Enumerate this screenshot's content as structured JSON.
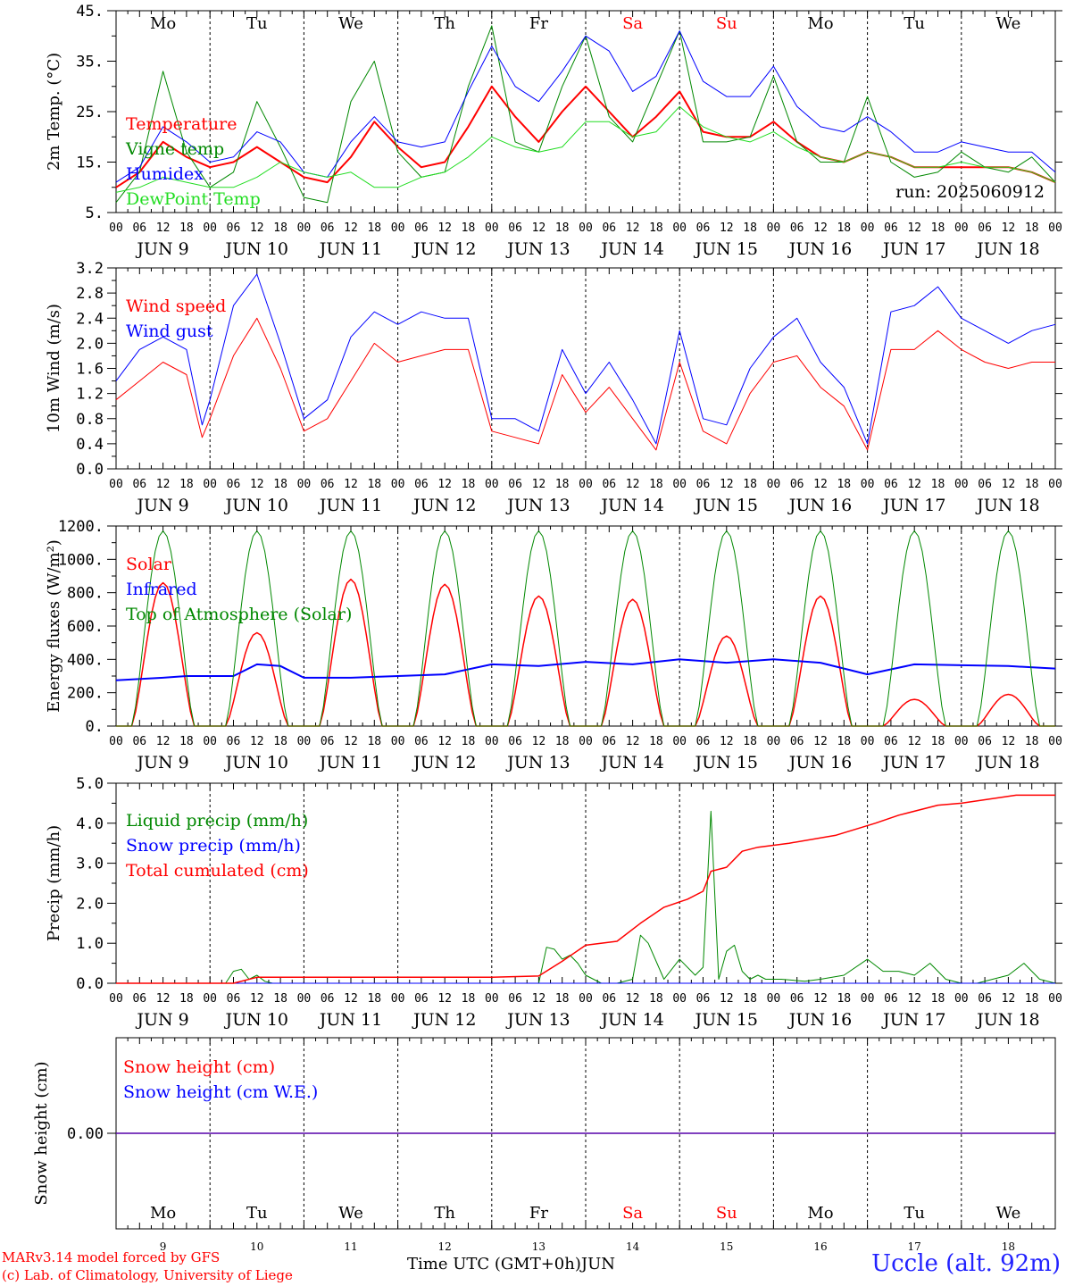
{
  "footer": {
    "model_credit": "MARv3.14 model forced by GFS",
    "lab_credit": "(c) Lab. of Climatology, University of Liege",
    "station": "Uccle (alt. 92m)",
    "x_axis_title": "Time UTC (GMT+0h)",
    "month": "JUN"
  },
  "run_label": "run: 2025060912",
  "days": {
    "names": [
      "Mo",
      "Tu",
      "We",
      "Th",
      "Fr",
      "Sa",
      "Su",
      "Mo",
      "Tu",
      "We"
    ],
    "numbers": [
      "9",
      "10",
      "11",
      "12",
      "13",
      "14",
      "15",
      "16",
      "17",
      "18"
    ],
    "date_labels": [
      "JUN  9",
      "JUN 10",
      "JUN 11",
      "JUN 12",
      "JUN 13",
      "JUN 14",
      "JUN 15",
      "JUN 16",
      "JUN 17",
      "JUN 18"
    ],
    "weekend_indices": [
      5,
      6
    ],
    "hour_ticks": [
      "00",
      "06",
      "12",
      "18"
    ],
    "final_tick": "00"
  },
  "colors": {
    "red": "#ff0000",
    "darkgreen": "#008800",
    "blue": "#0000ff",
    "lightgreen": "#22dd22",
    "weekend": "#ff0000",
    "axis": "#000000"
  },
  "chart_data": [
    {
      "type": "line",
      "ylabel": "2m Temp. (°C)",
      "ylim": [
        5,
        45
      ],
      "yticks": [
        5,
        15,
        25,
        35,
        45
      ],
      "ytick_labels": [
        "5.",
        "15.",
        "25.",
        "35.",
        "45."
      ],
      "x_unit": "hours since 2025-06-09 00 UTC",
      "series": [
        {
          "name": "Temperature",
          "color": "#ff0000",
          "width": 2,
          "x": [
            0,
            6,
            12,
            18,
            24,
            30,
            36,
            42,
            48,
            54,
            60,
            66,
            72,
            78,
            84,
            90,
            96,
            102,
            108,
            114,
            120,
            126,
            132,
            138,
            144,
            150,
            156,
            162,
            168,
            174,
            180,
            186,
            192,
            198,
            204,
            210,
            216,
            222,
            228,
            234,
            240
          ],
          "y": [
            10,
            13,
            19,
            16,
            14,
            15,
            18,
            15,
            12,
            11,
            16,
            23,
            18,
            14,
            15,
            22,
            30,
            24,
            19,
            25,
            30,
            25,
            20,
            24,
            29,
            21,
            20,
            20,
            23,
            19,
            16,
            15,
            17,
            16,
            14,
            14,
            14,
            14,
            14,
            13,
            11
          ]
        },
        {
          "name": "Vigne temp",
          "color": "#008800",
          "width": 1,
          "x": [
            0,
            6,
            12,
            18,
            24,
            30,
            36,
            42,
            48,
            54,
            60,
            66,
            72,
            78,
            84,
            90,
            96,
            102,
            108,
            114,
            120,
            126,
            132,
            138,
            144,
            150,
            156,
            162,
            168,
            174,
            180,
            186,
            192,
            198,
            204,
            210,
            216,
            222,
            228,
            234,
            240
          ],
          "y": [
            7,
            13,
            33,
            17,
            10,
            13,
            27,
            18,
            8,
            7,
            27,
            35,
            17,
            12,
            13,
            30,
            42,
            19,
            17,
            30,
            40,
            24,
            19,
            30,
            41,
            19,
            19,
            20,
            32,
            19,
            15,
            15,
            28,
            15,
            12,
            13,
            17,
            14,
            13,
            16,
            11
          ]
        },
        {
          "name": "Humidex",
          "color": "#0000ff",
          "width": 1,
          "x": [
            0,
            6,
            12,
            18,
            24,
            30,
            36,
            42,
            48,
            54,
            60,
            66,
            72,
            78,
            84,
            90,
            96,
            102,
            108,
            114,
            120,
            126,
            132,
            138,
            144,
            150,
            156,
            162,
            168,
            174,
            180,
            186,
            192,
            198,
            204,
            210,
            216,
            222,
            228,
            234,
            240
          ],
          "y": [
            11,
            14,
            22,
            19,
            15,
            16,
            21,
            19,
            13,
            12,
            19,
            24,
            19,
            18,
            19,
            29,
            38,
            30,
            27,
            33,
            40,
            37,
            29,
            32,
            41,
            31,
            28,
            28,
            34,
            26,
            22,
            21,
            24,
            21,
            17,
            17,
            19,
            18,
            17,
            17,
            13
          ]
        },
        {
          "name": "DewPoint Temp",
          "color": "#22dd22",
          "width": 1,
          "x": [
            0,
            6,
            12,
            18,
            24,
            30,
            36,
            42,
            48,
            54,
            60,
            66,
            72,
            78,
            84,
            90,
            96,
            102,
            108,
            114,
            120,
            126,
            132,
            138,
            144,
            150,
            156,
            162,
            168,
            174,
            180,
            186,
            192,
            198,
            204,
            210,
            216,
            222,
            228,
            234,
            240
          ],
          "y": [
            9,
            10,
            12,
            11,
            10,
            10,
            12,
            15,
            13,
            12,
            13,
            10,
            10,
            12,
            13,
            16,
            20,
            18,
            17,
            18,
            23,
            23,
            20,
            21,
            26,
            22,
            20,
            19,
            21,
            18,
            16,
            15,
            17,
            16,
            14,
            14,
            15,
            14,
            14,
            13,
            11
          ]
        }
      ]
    },
    {
      "type": "line",
      "ylabel": "10m Wind (m/s)",
      "ylim": [
        0,
        3.2
      ],
      "yticks": [
        0,
        0.4,
        0.8,
        1.2,
        1.6,
        2.0,
        2.4,
        2.8,
        3.2
      ],
      "ytick_labels": [
        "0.0",
        "0.4",
        "0.8",
        "1.2",
        "1.6",
        "2.0",
        "2.4",
        "2.8",
        "3.2"
      ],
      "series": [
        {
          "name": "Wind speed",
          "color": "#ff0000",
          "width": 1,
          "x": [
            0,
            6,
            12,
            18,
            22,
            24,
            30,
            36,
            42,
            48,
            54,
            60,
            66,
            72,
            78,
            84,
            90,
            96,
            102,
            108,
            114,
            120,
            126,
            132,
            138,
            144,
            150,
            156,
            162,
            168,
            174,
            180,
            186,
            192,
            198,
            204,
            210,
            216,
            222,
            228,
            234,
            240
          ],
          "y": [
            1.1,
            1.4,
            1.7,
            1.5,
            0.5,
            0.8,
            1.8,
            2.4,
            1.6,
            0.6,
            0.8,
            1.4,
            2.0,
            1.7,
            1.8,
            1.9,
            1.9,
            0.6,
            0.5,
            0.4,
            1.5,
            0.9,
            1.3,
            0.8,
            0.3,
            1.7,
            0.6,
            0.4,
            1.2,
            1.7,
            1.8,
            1.3,
            1.0,
            0.3,
            1.9,
            1.9,
            2.2,
            1.9,
            1.7,
            1.6,
            1.7,
            1.7
          ]
        },
        {
          "name": "Wind gust",
          "color": "#0000ff",
          "width": 1,
          "x": [
            0,
            6,
            12,
            18,
            22,
            24,
            30,
            36,
            42,
            48,
            54,
            60,
            66,
            72,
            78,
            84,
            90,
            96,
            102,
            108,
            114,
            120,
            126,
            132,
            138,
            144,
            150,
            156,
            162,
            168,
            174,
            180,
            186,
            192,
            198,
            204,
            210,
            216,
            222,
            228,
            234,
            240
          ],
          "y": [
            1.4,
            1.9,
            2.1,
            1.9,
            0.7,
            1.1,
            2.6,
            3.1,
            2.0,
            0.8,
            1.1,
            2.1,
            2.5,
            2.3,
            2.5,
            2.4,
            2.4,
            0.8,
            0.8,
            0.6,
            1.9,
            1.2,
            1.7,
            1.1,
            0.4,
            2.2,
            0.8,
            0.7,
            1.6,
            2.1,
            2.4,
            1.7,
            1.3,
            0.4,
            2.5,
            2.6,
            2.9,
            2.4,
            2.2,
            2.0,
            2.2,
            2.3
          ]
        }
      ]
    },
    {
      "type": "line",
      "ylabel": "Energy fluxes (W/m²)",
      "ylim": [
        0,
        1200
      ],
      "yticks": [
        0,
        200,
        400,
        600,
        800,
        1000,
        1200
      ],
      "ytick_labels": [
        "0.",
        "200.",
        "400.",
        "600.",
        "800.",
        "1000.",
        "1200."
      ],
      "series": [
        {
          "name": "Solar",
          "color": "#ff0000",
          "width": 1.5,
          "peak_hour_in_day": 12,
          "daily_peak": [
            860,
            560,
            880,
            850,
            780,
            760,
            540,
            780,
            160,
            190
          ]
        },
        {
          "name": "Infrared",
          "color": "#0000ff",
          "width": 2,
          "x": [
            0,
            12,
            18,
            24,
            30,
            36,
            42,
            48,
            60,
            72,
            84,
            96,
            108,
            120,
            132,
            144,
            156,
            168,
            180,
            192,
            204,
            216,
            228,
            240
          ],
          "y": [
            275,
            290,
            300,
            300,
            300,
            370,
            360,
            290,
            290,
            300,
            310,
            370,
            360,
            385,
            370,
            400,
            380,
            400,
            380,
            310,
            370,
            365,
            360,
            345
          ]
        },
        {
          "name": "Top of Atmosphere (Solar)",
          "color": "#008800",
          "width": 1,
          "peak_hour_in_day": 12,
          "daily_peak": [
            1170,
            1170,
            1170,
            1170,
            1170,
            1170,
            1170,
            1170,
            1170,
            1170
          ]
        }
      ]
    },
    {
      "type": "line",
      "ylabel": "Precip (mm/h)",
      "ylim": [
        0,
        5.0
      ],
      "yticks": [
        0,
        1.0,
        2.0,
        3.0,
        4.0,
        5.0
      ],
      "ytick_labels": [
        "0.0",
        "1.0",
        "2.0",
        "3.0",
        "4.0",
        "5.0"
      ],
      "series": [
        {
          "name": "Liquid precip (mm/h)",
          "color": "#008800",
          "width": 1,
          "x": [
            0,
            28,
            30,
            32,
            34,
            36,
            38,
            40,
            108,
            110,
            112,
            114,
            116,
            118,
            120,
            124,
            128,
            132,
            134,
            136,
            140,
            144,
            148,
            150,
            152,
            154,
            156,
            158,
            160,
            162,
            164,
            166,
            170,
            176,
            180,
            186,
            192,
            196,
            200,
            204,
            208,
            212,
            216,
            220,
            228,
            232,
            236,
            240
          ],
          "y": [
            0,
            0,
            0.3,
            0.35,
            0.1,
            0.2,
            0.05,
            0,
            0,
            0.9,
            0.85,
            0.6,
            0.7,
            0.5,
            0.2,
            0,
            0,
            0.1,
            1.2,
            1.0,
            0.1,
            0.6,
            0.2,
            0.4,
            4.3,
            0.1,
            0.8,
            0.95,
            0.3,
            0.1,
            0.2,
            0.1,
            0.1,
            0.05,
            0.1,
            0.2,
            0.6,
            0.3,
            0.3,
            0.2,
            0.5,
            0.1,
            0,
            0,
            0.2,
            0.5,
            0.1,
            0
          ]
        },
        {
          "name": "Snow precip (mm/h)",
          "color": "#0000ff",
          "width": 1,
          "x": [
            0,
            240
          ],
          "y": [
            0,
            0
          ]
        },
        {
          "name": "Total cumulated (cm)",
          "color": "#ff0000",
          "width": 1.5,
          "x": [
            0,
            30,
            36,
            60,
            96,
            108,
            114,
            120,
            128,
            134,
            140,
            146,
            150,
            152,
            156,
            160,
            164,
            172,
            184,
            194,
            200,
            210,
            216,
            230,
            240
          ],
          "y": [
            0,
            0,
            0.15,
            0.15,
            0.15,
            0.18,
            0.55,
            0.95,
            1.05,
            1.5,
            1.9,
            2.1,
            2.3,
            2.8,
            2.9,
            3.3,
            3.4,
            3.5,
            3.7,
            4.0,
            4.2,
            4.45,
            4.5,
            4.7,
            4.7
          ]
        }
      ]
    },
    {
      "type": "line",
      "ylabel": "Snow height (cm)",
      "ytick_labels": [
        "0.00"
      ],
      "series": [
        {
          "name": "Snow height (cm)",
          "color": "#ff0000",
          "width": 1.5,
          "x": [
            0,
            240
          ],
          "y": [
            0,
            0
          ]
        },
        {
          "name": "Snow height (cm W.E.)",
          "color": "#0000ff",
          "width": 1,
          "x": [
            0,
            240
          ],
          "y": [
            0,
            0
          ]
        }
      ]
    }
  ]
}
